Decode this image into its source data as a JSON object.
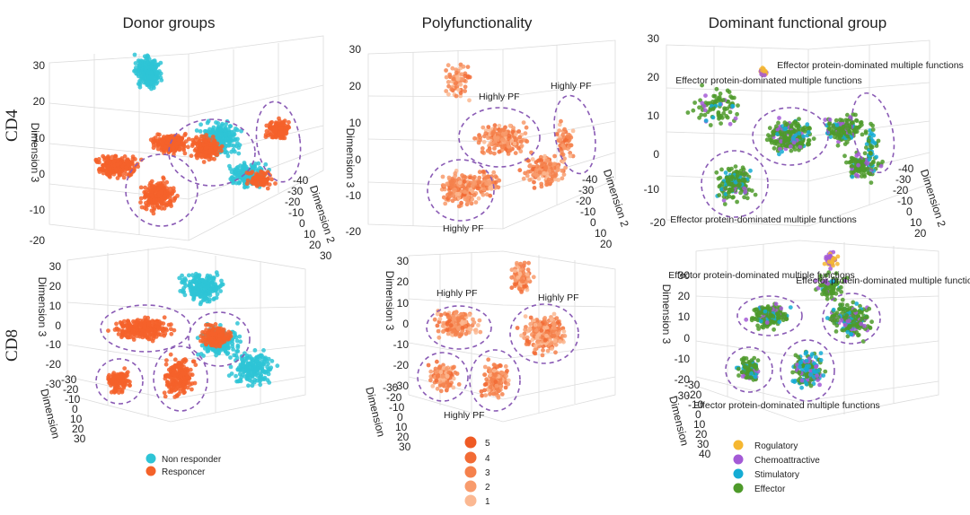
{
  "chart_data": {
    "type": "scatter",
    "title": "",
    "column_titles": [
      "Donor groups",
      "Polyfunctionality",
      "Dominant functional group"
    ],
    "row_labels": [
      "CD4",
      "CD8"
    ],
    "panels": [
      {
        "id": "cd4-donor",
        "row": "CD4",
        "column": "Donor groups",
        "axes": {
          "y_label": "Dimension 3",
          "z_label": "Dimension 2",
          "y_ticks": [
            "30",
            "20",
            "10",
            "0",
            "-10",
            "-20"
          ],
          "z_ticks": [
            "-40",
            "-30",
            "-20",
            "-10",
            "0",
            "10",
            "20",
            "30"
          ]
        },
        "series": [
          "Non responder",
          "Responder"
        ],
        "annotations": []
      },
      {
        "id": "cd4-pf",
        "row": "CD4",
        "column": "Polyfunctionality",
        "axes": {
          "y_label": "Dimension 3",
          "z_label": "Dimension 2",
          "y_ticks": [
            "30",
            "20",
            "10",
            "0",
            "-10",
            "-20"
          ],
          "z_ticks": [
            "-40",
            "-30",
            "-20",
            "-10",
            "0",
            "10",
            "20"
          ]
        },
        "annotations": [
          "Highly PF",
          "Highly PF",
          "Highly PF"
        ]
      },
      {
        "id": "cd4-func",
        "row": "CD4",
        "column": "Dominant functional group",
        "axes": {
          "y_label": "",
          "z_label": "Dimension 2",
          "y_ticks": [
            "30",
            "20",
            "10",
            "0",
            "-10",
            "-20"
          ],
          "z_ticks": [
            "-40",
            "-30",
            "-20",
            "-10",
            "0",
            "10",
            "20"
          ]
        },
        "annotations": [
          "Effector protein-dominated multiple functions",
          "Effector protein-dominated multiple functions",
          "Effector protein-dominated multiple functions"
        ]
      },
      {
        "id": "cd8-donor",
        "row": "CD8",
        "column": "Donor groups",
        "axes": {
          "y_label": "Dimension 3",
          "z_label": "Dimension",
          "y_ticks": [
            "30",
            "20",
            "10",
            "0",
            "-10",
            "-20",
            "-30"
          ],
          "z_ticks": [
            "-30",
            "-20",
            "-10",
            "0",
            "10",
            "20",
            "30"
          ]
        },
        "series": [
          "Non responder",
          "Responder"
        ],
        "annotations": []
      },
      {
        "id": "cd8-pf",
        "row": "CD8",
        "column": "Polyfunctionality",
        "axes": {
          "y_label": "Dimension 3",
          "z_label": "Dimension",
          "y_ticks": [
            "30",
            "20",
            "10",
            "0",
            "-10",
            "-20",
            "-30"
          ],
          "z_ticks": [
            "-30",
            "-20",
            "-10",
            "0",
            "10",
            "20",
            "30"
          ]
        },
        "annotations": [
          "Highly PF",
          "Highly PF",
          "Highly PF"
        ]
      },
      {
        "id": "cd8-func",
        "row": "CD8",
        "column": "Dominant functional group",
        "axes": {
          "y_label": "Dimension 3",
          "z_label": "Dimension",
          "y_ticks": [
            "30",
            "20",
            "10",
            "0",
            "-10",
            "-20",
            "-30"
          ],
          "z_ticks": [
            "-30",
            "-20",
            "-10",
            "0",
            "10",
            "20",
            "30",
            "40"
          ]
        },
        "annotations": [
          "Effector protein-dominated multiple functions",
          "Effector protein-dominated multiple functions",
          "Effector protein-dominated multiple functions"
        ]
      }
    ],
    "legends": {
      "donor": [
        {
          "label": "Non responder",
          "color": "#2ec4d6"
        },
        {
          "label": "Responcer",
          "color": "#f4622a"
        }
      ],
      "polyfunctionality": [
        {
          "label": "5",
          "color": "#ef5a24"
        },
        {
          "label": "4",
          "color": "#f26b35"
        },
        {
          "label": "3",
          "color": "#f5814c"
        },
        {
          "label": "2",
          "color": "#f89b6c"
        },
        {
          "label": "1",
          "color": "#fbb892"
        }
      ],
      "functional": [
        {
          "label": "Rogulatory",
          "color": "#f5b731"
        },
        {
          "label": "Chemoattractive",
          "color": "#a45ad6"
        },
        {
          "label": "Stimulatory",
          "color": "#15acd4"
        },
        {
          "label": "Effector",
          "color": "#4e9a2a"
        }
      ]
    }
  }
}
